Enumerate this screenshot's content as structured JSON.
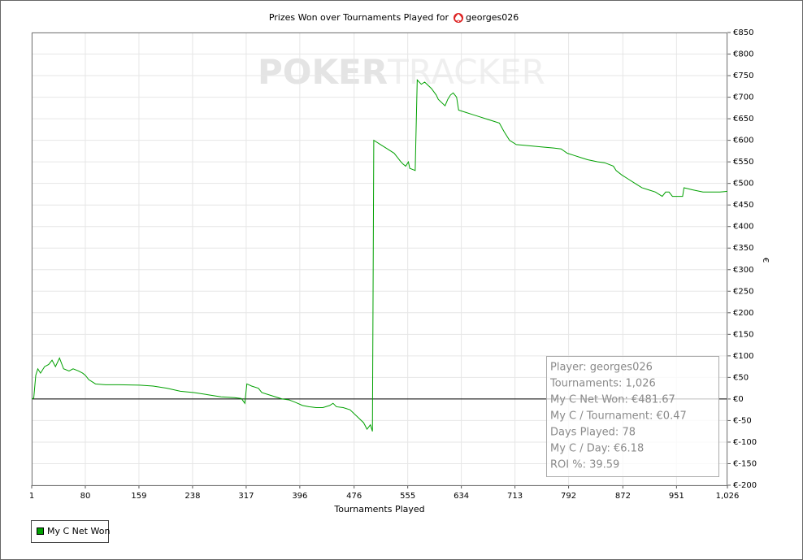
{
  "chart_data": {
    "type": "line",
    "title": "Prizes Won over Tournaments Played for",
    "player": "georges026",
    "watermark": [
      "POKER",
      "TRACKER"
    ],
    "x_label": "Tournaments Played",
    "y_label": "€",
    "x": [
      1,
      4,
      7,
      10,
      14,
      20,
      26,
      31,
      36,
      42,
      48,
      56,
      62,
      70,
      76,
      80,
      85,
      90,
      95,
      110,
      130,
      160,
      180,
      200,
      220,
      240,
      260,
      280,
      300,
      310,
      315,
      318,
      325,
      335,
      340,
      350,
      360,
      370,
      380,
      390,
      400,
      410,
      420,
      430,
      440,
      445,
      450,
      460,
      470,
      480,
      490,
      495,
      500,
      503,
      505,
      515,
      525,
      535,
      540,
      545,
      548,
      552,
      556,
      558,
      566,
      569,
      575,
      580,
      590,
      597,
      600,
      610,
      614,
      618,
      622,
      627,
      630,
      640,
      650,
      660,
      670,
      680,
      690,
      697,
      705,
      715,
      730,
      750,
      770,
      781,
      790,
      800,
      810,
      820,
      835,
      845,
      858,
      862,
      870,
      880,
      890,
      900,
      910,
      920,
      930,
      935,
      940,
      945,
      955,
      960,
      962,
      975,
      990,
      1005,
      1015,
      1026
    ],
    "series": [
      {
        "name": "My C Net Won",
        "color": "#00a000",
        "values": [
          0,
          2,
          55,
          70,
          60,
          75,
          80,
          90,
          75,
          95,
          70,
          65,
          70,
          65,
          60,
          55,
          45,
          40,
          35,
          33,
          33,
          32,
          30,
          25,
          18,
          15,
          10,
          5,
          3,
          1,
          -10,
          35,
          30,
          25,
          15,
          10,
          5,
          0,
          -2,
          -8,
          -15,
          -18,
          -20,
          -20,
          -15,
          -10,
          -18,
          -20,
          -25,
          -40,
          -55,
          -70,
          -60,
          -75,
          600,
          590,
          580,
          570,
          560,
          550,
          545,
          540,
          550,
          535,
          530,
          740,
          730,
          735,
          720,
          705,
          695,
          680,
          695,
          705,
          710,
          700,
          670,
          665,
          660,
          655,
          650,
          645,
          640,
          620,
          600,
          590,
          588,
          585,
          582,
          580,
          570,
          565,
          560,
          555,
          550,
          548,
          540,
          530,
          520,
          510,
          500,
          490,
          485,
          480,
          470,
          480,
          480,
          470,
          470,
          470,
          490,
          485,
          480,
          480,
          480,
          481.67
        ]
      }
    ],
    "xlim": [
      1,
      1026
    ],
    "xticks": [
      1,
      80,
      159,
      238,
      317,
      396,
      476,
      555,
      634,
      713,
      792,
      872,
      951,
      {
        "value": 1026,
        "label": "1,026"
      }
    ],
    "ylim": [
      -200,
      850
    ],
    "yticks": [
      {
        "value": -200,
        "label": "€-200"
      },
      {
        "value": -150,
        "label": "€-150"
      },
      {
        "value": -100,
        "label": "€-100"
      },
      {
        "value": -50,
        "label": "€-50"
      },
      {
        "value": 0,
        "label": "€0"
      },
      {
        "value": 50,
        "label": "€50"
      },
      {
        "value": 100,
        "label": "€100"
      },
      {
        "value": 150,
        "label": "€150"
      },
      {
        "value": 200,
        "label": "€200"
      },
      {
        "value": 250,
        "label": "€250"
      },
      {
        "value": 300,
        "label": "€300"
      },
      {
        "value": 350,
        "label": "€350"
      },
      {
        "value": 400,
        "label": "€400"
      },
      {
        "value": 450,
        "label": "€450"
      },
      {
        "value": 500,
        "label": "€500"
      },
      {
        "value": 550,
        "label": "€550"
      },
      {
        "value": 600,
        "label": "€600"
      },
      {
        "value": 650,
        "label": "€650"
      },
      {
        "value": 700,
        "label": "€700"
      },
      {
        "value": 750,
        "label": "€750"
      },
      {
        "value": 800,
        "label": "€800"
      },
      {
        "value": 850,
        "label": "€850"
      }
    ],
    "grid": true,
    "stats": [
      "Player: georges026",
      "Tournaments: 1,026",
      "My C Net Won: €481.67",
      "My C / Tournament: €0.47",
      "Days Played: 78",
      "My C / Day: €6.18",
      "ROI %: 39.59"
    ]
  }
}
